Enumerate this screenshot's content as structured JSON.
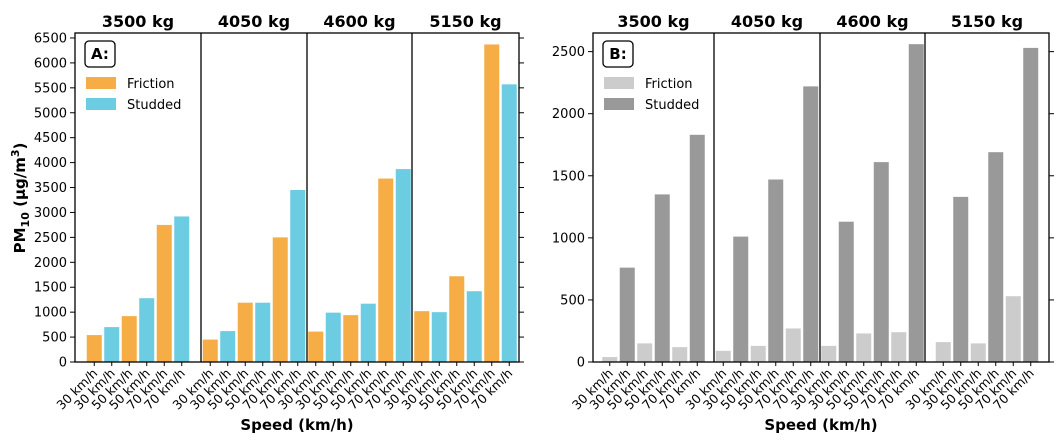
{
  "chart_data": [
    {
      "type": "bar",
      "panel_label": "A:",
      "groups": [
        "3500 kg",
        "4050 kg",
        "4600 kg",
        "5150 kg"
      ],
      "categories": [
        "30 km/h",
        "30 km/h",
        "50 km/h",
        "50 km/h",
        "70 km/h",
        "70 km/h"
      ],
      "series_pattern": [
        "Friction",
        "Studded",
        "Friction",
        "Studded",
        "Friction",
        "Studded"
      ],
      "series": [
        {
          "name": "Friction",
          "color": "#f6ad45"
        },
        {
          "name": "Studded",
          "color": "#6ccce2"
        }
      ],
      "values": [
        [
          540,
          700,
          920,
          1280,
          2750,
          2920
        ],
        [
          450,
          620,
          1190,
          1190,
          2500,
          3450
        ],
        [
          610,
          990,
          940,
          1170,
          3680,
          3870
        ],
        [
          1020,
          1000,
          1720,
          1420,
          6370,
          5570
        ]
      ],
      "ylabel_main": "PM",
      "ylabel_sub": "10",
      "ylabel_unit": " (µg/m",
      "ylabel_sup": "3",
      "ylabel_end": ")",
      "xlabel": "Speed (km/h)",
      "ylim": [
        0,
        6600
      ],
      "yticks": [
        "0",
        "500",
        "1000",
        "1500",
        "2000",
        "2500",
        "3000",
        "3500",
        "4000",
        "4500",
        "5000",
        "5500",
        "6000",
        "6500"
      ],
      "legend_position": "top-left"
    },
    {
      "type": "bar",
      "panel_label": "B:",
      "groups": [
        "3500 kg",
        "4050 kg",
        "4600 kg",
        "5150 kg"
      ],
      "categories": [
        "30 km/h",
        "30 km/h",
        "50 km/h",
        "50 km/h",
        "70 km/h",
        "70 km/h"
      ],
      "series_pattern": [
        "Friction",
        "Studded",
        "Friction",
        "Studded",
        "Friction",
        "Studded"
      ],
      "series": [
        {
          "name": "Friction",
          "color": "#cccccc"
        },
        {
          "name": "Studded",
          "color": "#999999"
        }
      ],
      "values": [
        [
          40,
          760,
          150,
          1350,
          120,
          1830
        ],
        [
          90,
          1010,
          130,
          1470,
          270,
          2220
        ],
        [
          130,
          1130,
          230,
          1610,
          240,
          2560
        ],
        [
          160,
          1330,
          150,
          1690,
          530,
          2530
        ]
      ],
      "xlabel": "Speed (km/h)",
      "ylim": [
        0,
        2650
      ],
      "yticks": [
        "0",
        "500",
        "1000",
        "1500",
        "2000",
        "2500"
      ],
      "legend_position": "top-left"
    }
  ]
}
